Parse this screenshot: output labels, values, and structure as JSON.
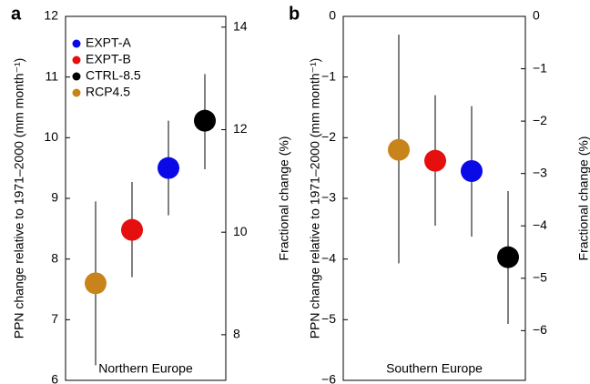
{
  "chart_data": [
    {
      "type": "errorbar",
      "panel": "a",
      "title": "Northern Europe",
      "ylabel": "PPN change relative to 1971–2000 (mm month⁻¹)",
      "y2label": "Fractional change (%)",
      "ylim": [
        6,
        12
      ],
      "yticks": [
        6,
        7,
        8,
        9,
        10,
        11,
        12
      ],
      "y2lim": [
        7.11,
        14.21
      ],
      "y2ticks": [
        8,
        10,
        12,
        14
      ],
      "legend": "upper left",
      "series": [
        {
          "name": "EXPT-A",
          "color": "#0a0ae6",
          "values": [
            9.5
          ],
          "lower": [
            8.72
          ],
          "upper": [
            10.28
          ]
        },
        {
          "name": "EXPT-B",
          "color": "#e60f0f",
          "values": [
            8.48
          ],
          "lower": [
            7.7
          ],
          "upper": [
            9.27
          ]
        },
        {
          "name": "CTRL-8.5",
          "color": "#000000",
          "values": [
            10.28
          ],
          "lower": [
            9.48
          ],
          "upper": [
            11.05
          ]
        },
        {
          "name": "RCP4.5",
          "color": "#c8841a",
          "values": [
            7.6
          ],
          "lower": [
            6.25
          ],
          "upper": [
            8.95
          ]
        }
      ]
    },
    {
      "type": "errorbar",
      "panel": "b",
      "title": "Southern Europe",
      "ylabel": "PPN change relative to 1971–2000 (mm month⁻¹)",
      "y2label": "Fractional change (%)",
      "ylim": [
        -6,
        0
      ],
      "yticks": [
        {
          "value": -6,
          "label": "−6"
        },
        {
          "value": -5,
          "label": "−5"
        },
        {
          "value": -4,
          "label": "−4"
        },
        {
          "value": -3,
          "label": "−3"
        },
        {
          "value": -2,
          "label": "−2"
        },
        {
          "value": -1,
          "label": "−1"
        },
        0
      ],
      "y2lim": [
        -6.95,
        0
      ],
      "y2ticks": [
        {
          "value": -6,
          "label": "−6"
        },
        {
          "value": -5,
          "label": "−5"
        },
        {
          "value": -4,
          "label": "−4"
        },
        {
          "value": -3,
          "label": "−3"
        },
        {
          "value": -2,
          "label": "−2"
        },
        {
          "value": -1,
          "label": "−1"
        },
        0
      ],
      "series": [
        {
          "color": "#0a0ae6",
          "values": [
            -2.55
          ],
          "lower": [
            -3.63
          ],
          "upper": [
            -1.48
          ]
        },
        {
          "color": "#e60f0f",
          "values": [
            -2.38
          ],
          "lower": [
            -3.45
          ],
          "upper": [
            -1.3
          ]
        },
        {
          "color": "#000000",
          "values": [
            -3.97
          ],
          "lower": [
            -5.07
          ],
          "upper": [
            -2.88
          ]
        },
        {
          "color": "#c8841a",
          "values": [
            -2.2
          ],
          "lower": [
            -4.07
          ],
          "upper": [
            -0.3
          ]
        }
      ]
    }
  ]
}
